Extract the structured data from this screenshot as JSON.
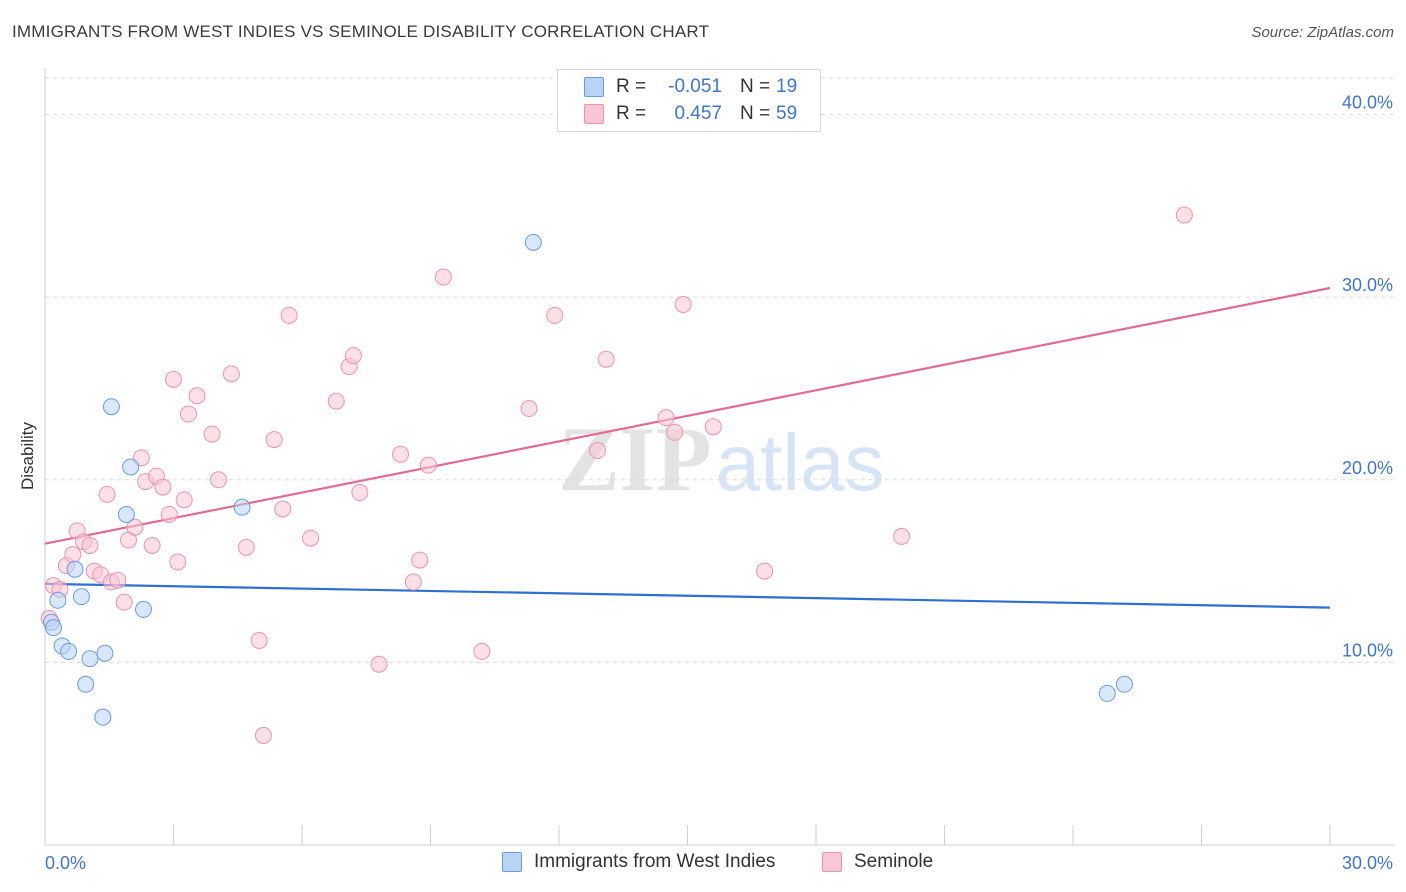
{
  "title": "IMMIGRANTS FROM WEST INDIES VS SEMINOLE DISABILITY CORRELATION CHART",
  "source": "Source: ZipAtlas.com",
  "watermark": {
    "zip": "ZIP",
    "atlas": "atlas"
  },
  "colors": {
    "blue_fill": "#b9d3f5",
    "blue_stroke": "#6a9be0",
    "blue_line": "#2f6fd0",
    "pink_fill": "#f9c6d6",
    "pink_stroke": "#ea93af",
    "pink_line": "#e26b94",
    "axis_text": "#3f76c8",
    "grid": "#d9d9d9"
  },
  "legend": {
    "rows": [
      {
        "r_label": "R =",
        "r_value": "-0.051",
        "n_label": "N =",
        "n_value": "19"
      },
      {
        "r_label": "R =",
        "r_value": "0.457",
        "n_label": "N =",
        "n_value": "59"
      }
    ]
  },
  "bottom_legend": {
    "series1": "Immigrants from West Indies",
    "series2": "Seminole"
  },
  "chart_data": {
    "type": "scatter",
    "title": "IMMIGRANTS FROM WEST INDIES VS SEMINOLE DISABILITY CORRELATION CHART",
    "xlabel": "",
    "ylabel": "Disability",
    "xlim": [
      0,
      30
    ],
    "ylim": [
      0,
      42
    ],
    "x_tick_labels": [
      "0.0%",
      "30.0%"
    ],
    "y_ticks": [
      10,
      20,
      30,
      40
    ],
    "y_tick_labels": [
      "10.0%",
      "20.0%",
      "30.0%",
      "40.0%"
    ],
    "grid": true,
    "series": [
      {
        "name": "Immigrants from West Indies",
        "r": -0.051,
        "n": 19,
        "trend": {
          "x": [
            0,
            30
          ],
          "y": [
            14.3,
            13.0
          ]
        },
        "points": [
          [
            0.15,
            12.2
          ],
          [
            0.2,
            11.9
          ],
          [
            0.3,
            13.4
          ],
          [
            0.4,
            10.9
          ],
          [
            0.55,
            10.6
          ],
          [
            0.7,
            15.1
          ],
          [
            0.85,
            13.6
          ],
          [
            0.95,
            8.8
          ],
          [
            1.05,
            10.2
          ],
          [
            1.35,
            7.0
          ],
          [
            1.4,
            10.5
          ],
          [
            1.55,
            24.0
          ],
          [
            1.9,
            18.1
          ],
          [
            2.0,
            20.7
          ],
          [
            2.3,
            12.9
          ],
          [
            4.6,
            18.5
          ],
          [
            11.4,
            33.0
          ],
          [
            24.8,
            8.3
          ],
          [
            25.2,
            8.8
          ]
        ]
      },
      {
        "name": "Seminole",
        "r": 0.457,
        "n": 59,
        "trend": {
          "x": [
            0,
            30
          ],
          "y": [
            16.5,
            30.5
          ]
        },
        "points": [
          [
            0.1,
            12.4
          ],
          [
            0.2,
            14.2
          ],
          [
            0.35,
            14.0
          ],
          [
            0.5,
            15.3
          ],
          [
            0.65,
            15.9
          ],
          [
            0.75,
            17.2
          ],
          [
            0.9,
            16.6
          ],
          [
            1.05,
            16.4
          ],
          [
            1.15,
            15.0
          ],
          [
            1.3,
            14.8
          ],
          [
            1.45,
            19.2
          ],
          [
            1.55,
            14.4
          ],
          [
            1.7,
            14.5
          ],
          [
            1.85,
            13.3
          ],
          [
            1.95,
            16.7
          ],
          [
            2.1,
            17.4
          ],
          [
            2.25,
            21.2
          ],
          [
            2.35,
            19.9
          ],
          [
            2.5,
            16.4
          ],
          [
            2.6,
            20.2
          ],
          [
            2.75,
            19.6
          ],
          [
            2.9,
            18.1
          ],
          [
            3.0,
            25.5
          ],
          [
            3.1,
            15.5
          ],
          [
            3.25,
            18.9
          ],
          [
            3.35,
            23.6
          ],
          [
            3.55,
            24.6
          ],
          [
            3.9,
            22.5
          ],
          [
            4.05,
            20.0
          ],
          [
            4.35,
            25.8
          ],
          [
            4.7,
            16.3
          ],
          [
            5.0,
            11.2
          ],
          [
            5.1,
            6.0
          ],
          [
            5.35,
            22.2
          ],
          [
            5.55,
            18.4
          ],
          [
            5.7,
            29.0
          ],
          [
            6.2,
            16.8
          ],
          [
            6.8,
            24.3
          ],
          [
            7.1,
            26.2
          ],
          [
            7.2,
            26.8
          ],
          [
            7.35,
            19.3
          ],
          [
            7.8,
            9.9
          ],
          [
            8.3,
            21.4
          ],
          [
            8.6,
            14.4
          ],
          [
            8.75,
            15.6
          ],
          [
            8.95,
            20.8
          ],
          [
            9.3,
            31.1
          ],
          [
            10.2,
            10.6
          ],
          [
            11.3,
            23.9
          ],
          [
            11.9,
            29.0
          ],
          [
            12.9,
            21.6
          ],
          [
            13.1,
            26.6
          ],
          [
            14.5,
            23.4
          ],
          [
            14.7,
            22.6
          ],
          [
            14.9,
            29.6
          ],
          [
            15.6,
            22.9
          ],
          [
            16.8,
            15.0
          ],
          [
            20.0,
            16.9
          ],
          [
            26.6,
            34.5
          ]
        ]
      }
    ]
  }
}
